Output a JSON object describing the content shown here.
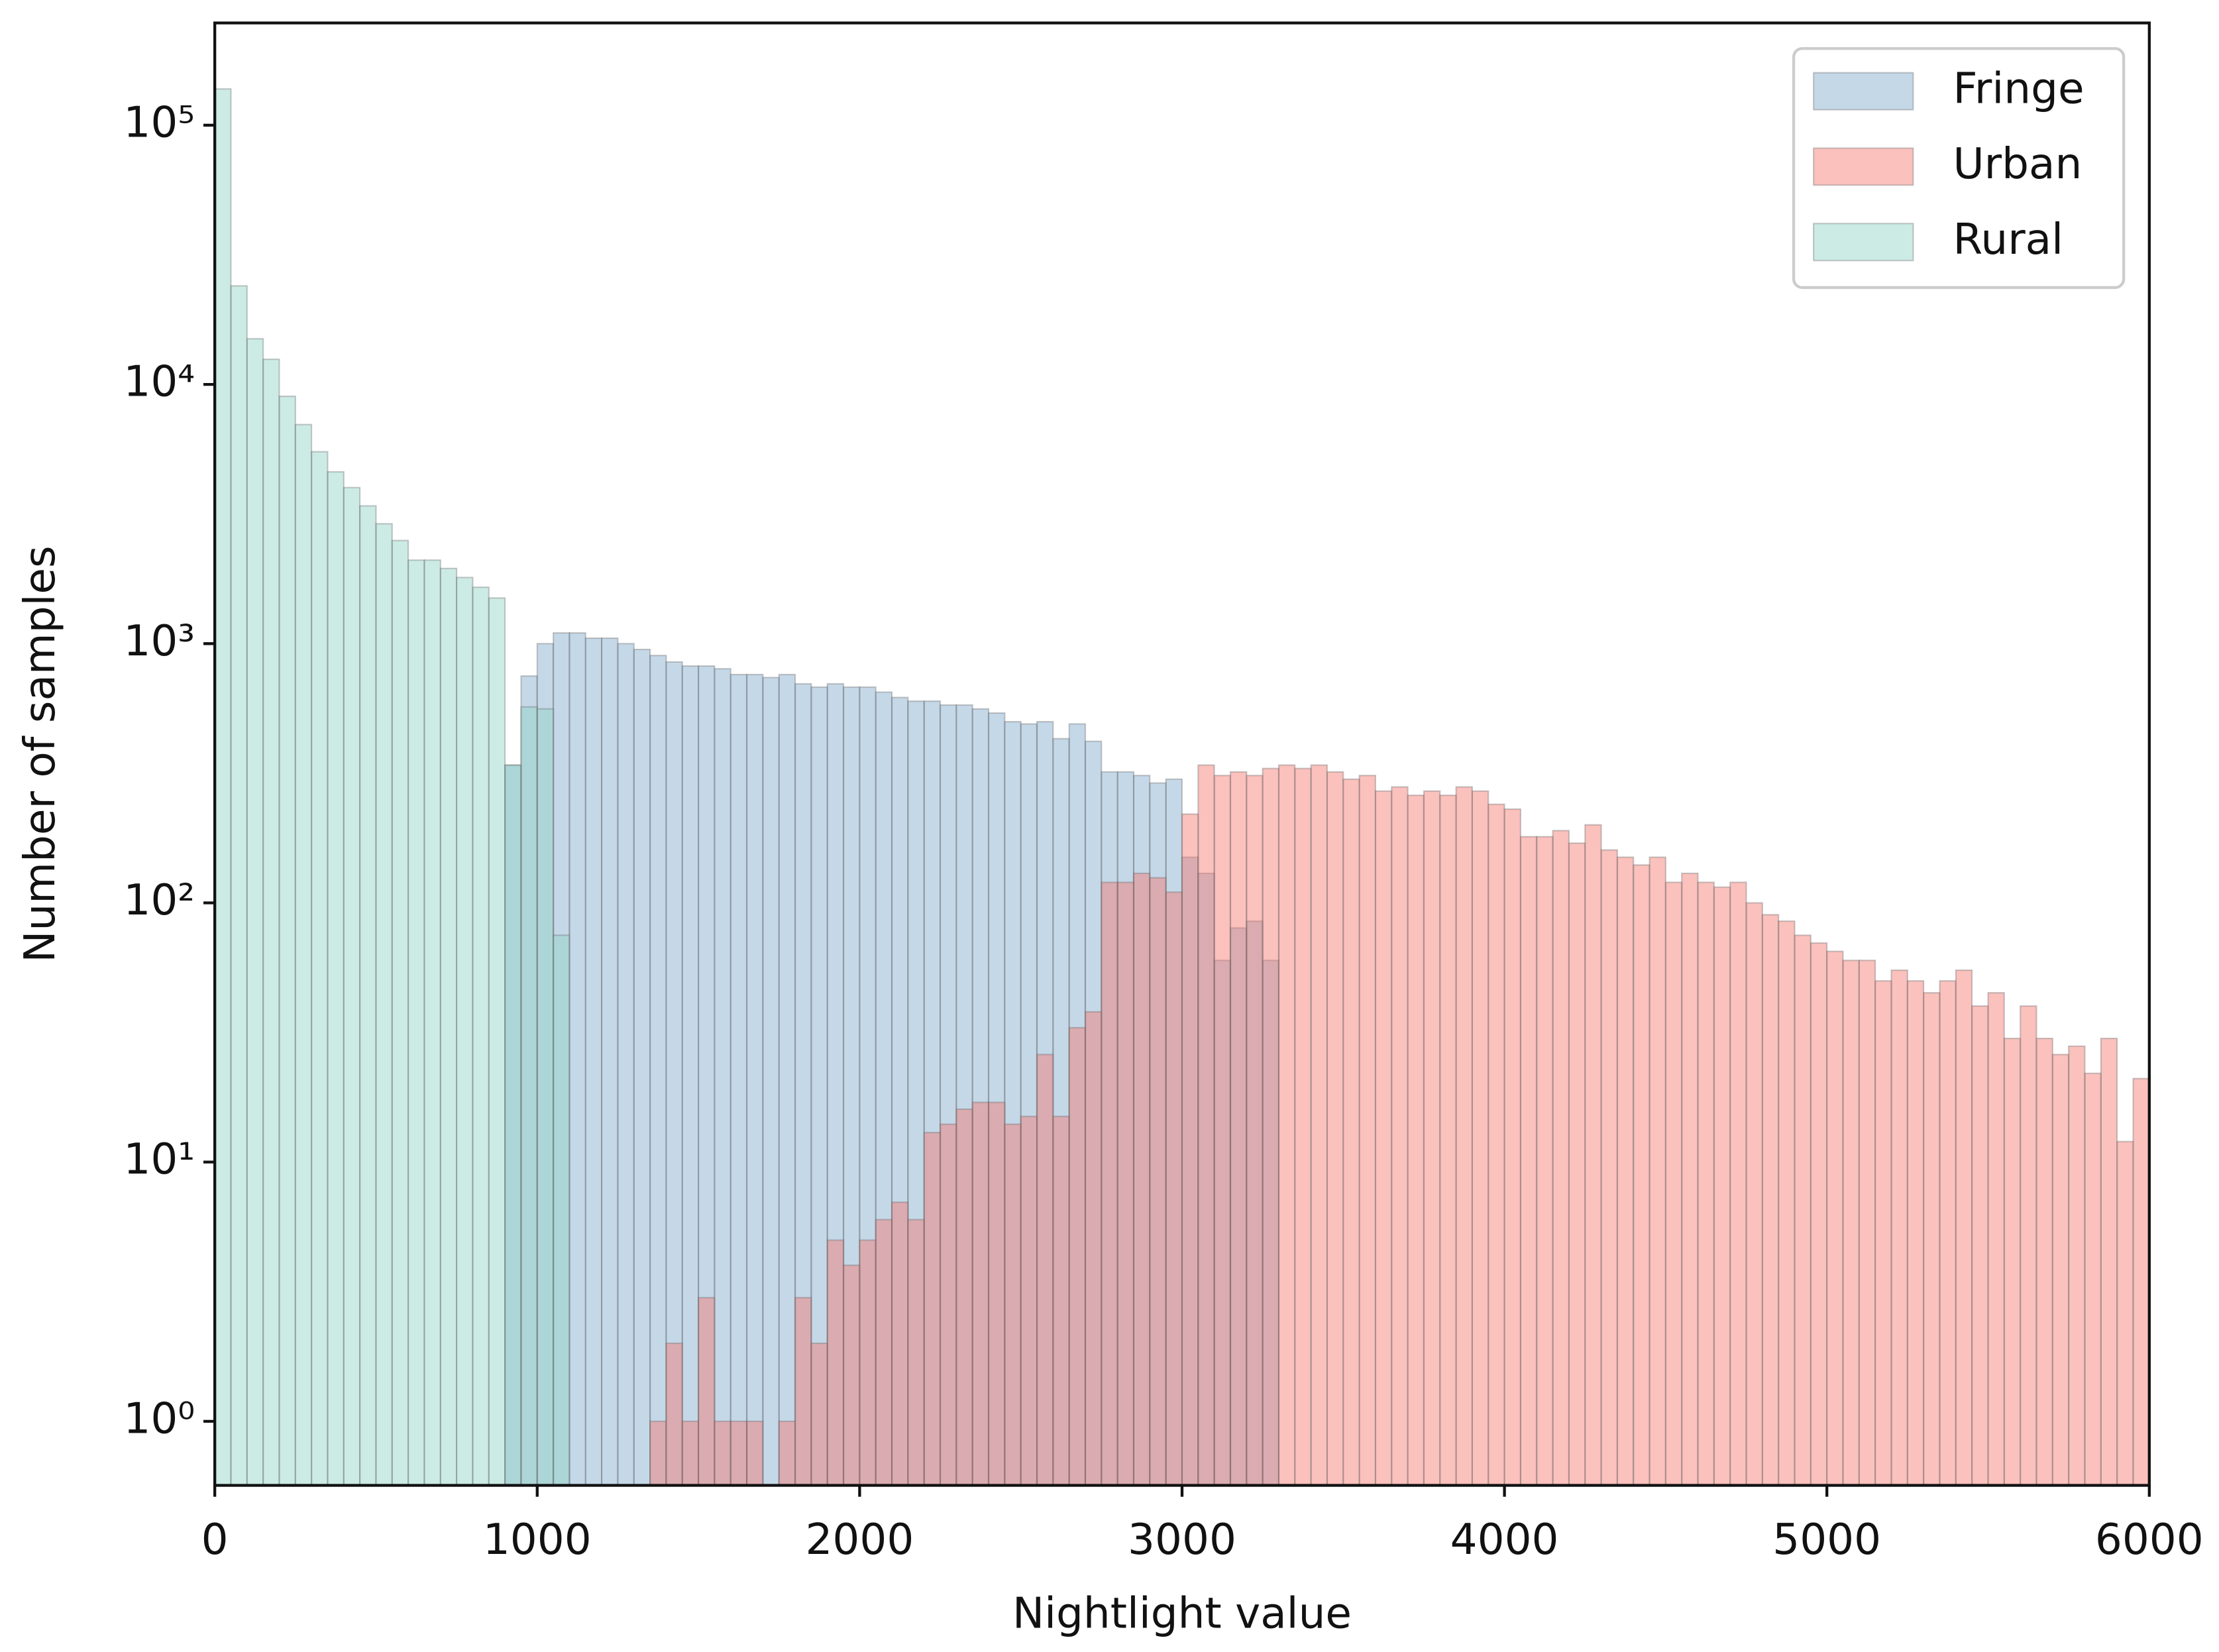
{
  "chart_data": {
    "type": "histogram",
    "xlabel": "Nightlight value",
    "ylabel": "Number of samples",
    "xlim": [
      0,
      6000
    ],
    "xticks": [
      0,
      1000,
      2000,
      3000,
      4000,
      5000,
      6000
    ],
    "ylim": [
      0.566,
      248000
    ],
    "yscale": "log",
    "yticks": [
      {
        "value": 1,
        "label": "10⁰"
      },
      {
        "value": 10,
        "label": "10¹"
      },
      {
        "value": 100,
        "label": "10²"
      },
      {
        "value": 1000,
        "label": "10³"
      },
      {
        "value": 10000,
        "label": "10⁴"
      },
      {
        "value": 100000,
        "label": "10⁵"
      }
    ],
    "legend": "upper right",
    "series": [
      {
        "name": "Fringe",
        "color": "#7fa8cc",
        "bins": [
          900,
          950,
          1000,
          1050,
          1100,
          1150,
          1200,
          1250,
          1300,
          1350,
          1400,
          1450,
          1500,
          1550,
          1600,
          1650,
          1700,
          1750,
          1800,
          1850,
          1900,
          1950,
          2000,
          2050,
          2100,
          2150,
          2200,
          2250,
          2300,
          2350,
          2400,
          2450,
          2500,
          2550,
          2600,
          2650,
          2700,
          2750,
          2800,
          2850,
          2900,
          2950,
          3000,
          3050,
          3100,
          3150,
          3200,
          3250,
          3300
        ],
        "values": [
          340,
          750,
          1000,
          1100,
          1100,
          1050,
          1050,
          1000,
          950,
          900,
          850,
          820,
          820,
          800,
          760,
          760,
          740,
          760,
          700,
          680,
          700,
          680,
          680,
          650,
          620,
          600,
          600,
          580,
          580,
          560,
          540,
          500,
          490,
          500,
          430,
          490,
          420,
          320,
          320,
          310,
          290,
          300,
          150,
          130,
          60,
          80,
          85,
          60
        ]
      },
      {
        "name": "Urban",
        "color": "#f4756d",
        "bins": [
          1350,
          1400,
          1450,
          1500,
          1550,
          1600,
          1650,
          1700,
          1750,
          1800,
          1850,
          1900,
          1950,
          2000,
          2050,
          2100,
          2150,
          2200,
          2250,
          2300,
          2350,
          2400,
          2450,
          2500,
          2550,
          2600,
          2650,
          2700,
          2750,
          2800,
          2850,
          2900,
          2950,
          3000,
          3050,
          3100,
          3150,
          3200,
          3250,
          3300,
          3350,
          3400,
          3450,
          3500,
          3550,
          3600,
          3650,
          3700,
          3750,
          3800,
          3850,
          3900,
          3950,
          4000,
          4050,
          4100,
          4150,
          4200,
          4250,
          4300,
          4350,
          4400,
          4450,
          4500,
          4550,
          4600,
          4650,
          4700,
          4750,
          4800,
          4850,
          4900,
          4950,
          5000,
          5050,
          5100,
          5150,
          5200,
          5250,
          5300,
          5350,
          5400,
          5450,
          5500,
          5550,
          5600,
          5650,
          5700,
          5750,
          5800,
          5850,
          5900,
          5950,
          6000
        ],
        "values": [
          1,
          2,
          1,
          3,
          1,
          1,
          1,
          0,
          1,
          3,
          2,
          5,
          4,
          5,
          6,
          7,
          6,
          13,
          14,
          16,
          17,
          17,
          14,
          15,
          26,
          15,
          33,
          38,
          120,
          120,
          130,
          125,
          110,
          220,
          340,
          310,
          320,
          310,
          330,
          340,
          330,
          340,
          320,
          300,
          310,
          270,
          280,
          260,
          270,
          260,
          280,
          270,
          240,
          230,
          180,
          180,
          190,
          170,
          200,
          160,
          150,
          140,
          150,
          120,
          130,
          120,
          115,
          120,
          100,
          90,
          85,
          75,
          70,
          65,
          60,
          60,
          50,
          55,
          50,
          45,
          50,
          55,
          40,
          45,
          30,
          40,
          30,
          26,
          28,
          22,
          30,
          12,
          21
        ]
      },
      {
        "name": "Rural",
        "color": "#8dd3c4",
        "bins": [
          0,
          50,
          100,
          150,
          200,
          250,
          300,
          350,
          400,
          450,
          500,
          550,
          600,
          650,
          700,
          750,
          800,
          850,
          900,
          950,
          1000,
          1050,
          1100
        ],
        "values": [
          138000,
          24000,
          15000,
          12500,
          9000,
          7000,
          5500,
          4600,
          4000,
          3400,
          2900,
          2500,
          2100,
          2100,
          1950,
          1800,
          1650,
          1500,
          340,
          570,
          560,
          75
        ]
      }
    ]
  }
}
